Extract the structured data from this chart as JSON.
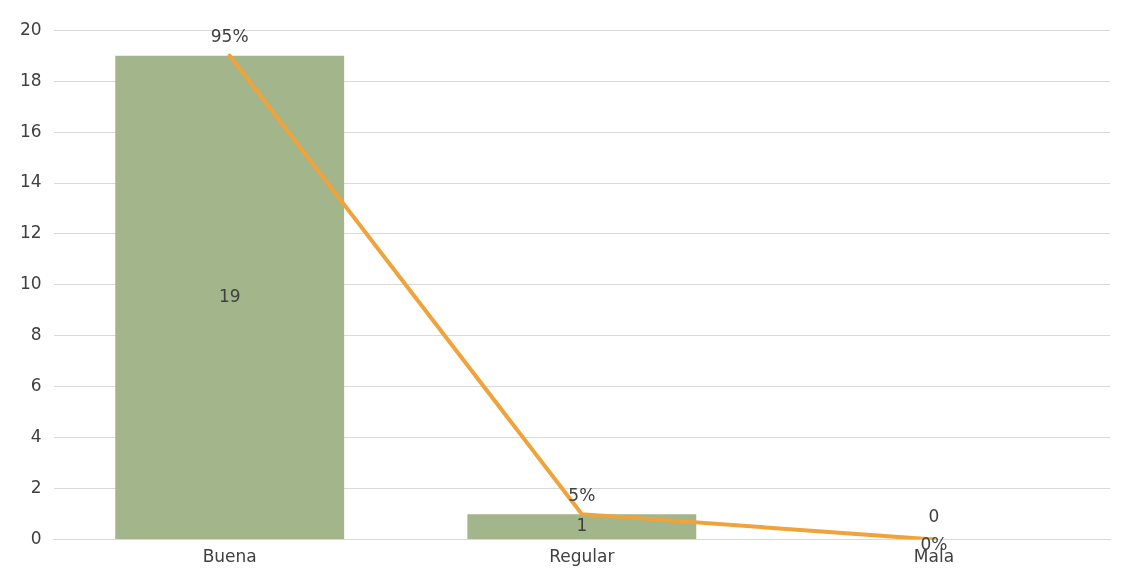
{
  "chart_data": {
    "type": "bar",
    "categories": [
      "Buena",
      "Regular",
      "Mala"
    ],
    "series": [
      {
        "color": "#a2b58b",
        "values": [
          19,
          1,
          0
        ],
        "data_labels": true
      },
      {
        "type": "line",
        "color": "#f0a33a",
        "values": [
          95,
          5,
          0
        ],
        "value_labels": [
          "95%",
          "5%",
          "0%"
        ],
        "marker": "none",
        "axis": "y2"
      }
    ],
    "y2lim": [
      0,
      100
    ],
    "ylim": [
      0,
      20
    ],
    "yticks": [
      0,
      2,
      4,
      6,
      8,
      10,
      12,
      14,
      16,
      18,
      20
    ],
    "grid": "y",
    "legend": false
  }
}
